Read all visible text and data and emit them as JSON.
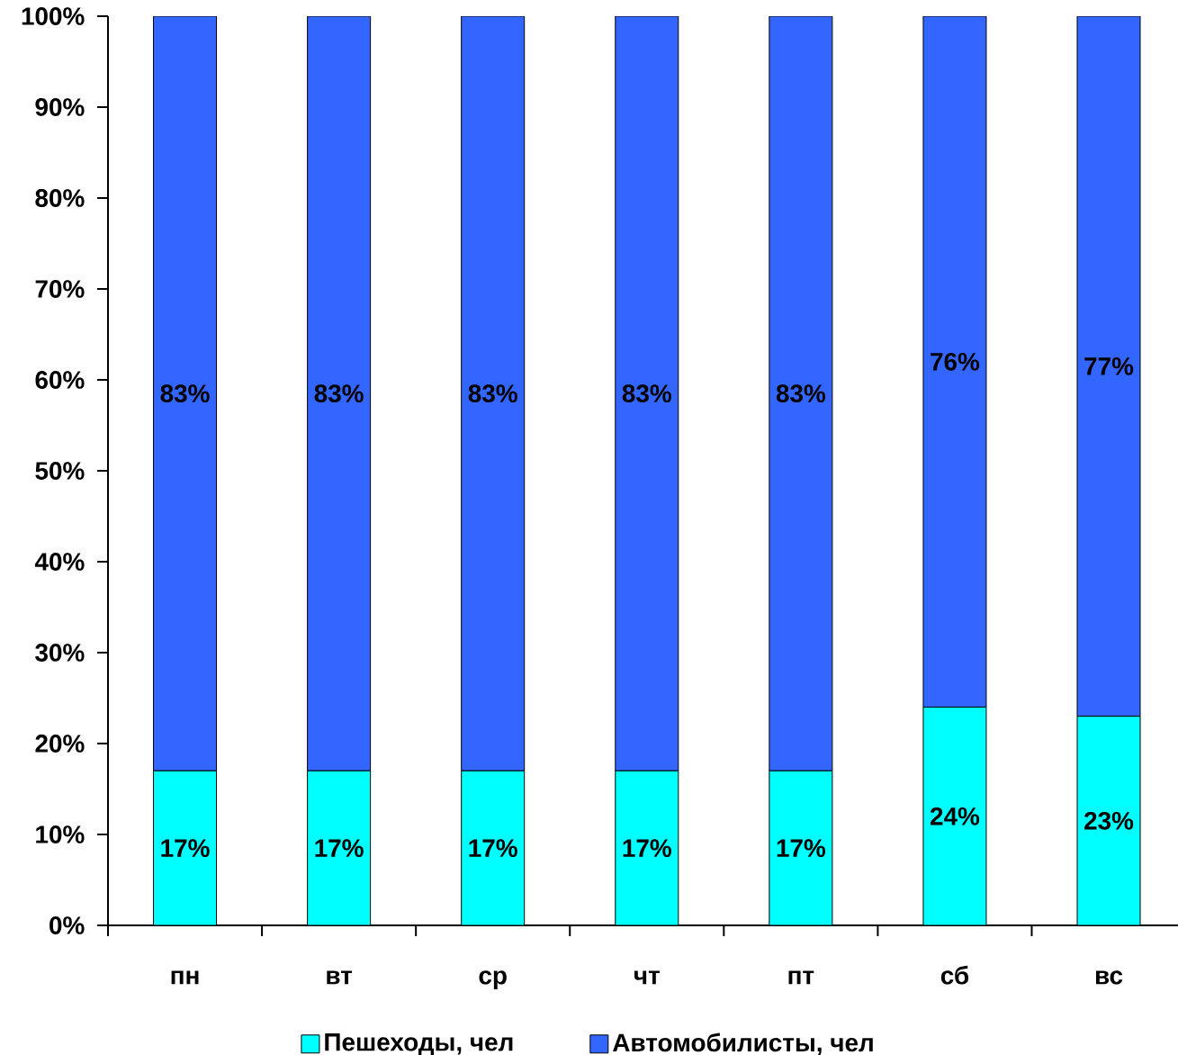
{
  "chart_data": {
    "type": "bar",
    "stacked": true,
    "categories": [
      "пн",
      "вт",
      "ср",
      "чт",
      "пт",
      "сб",
      "вс"
    ],
    "series": [
      {
        "name": "Пешеходы, чел",
        "color": "#00ffff",
        "values": [
          17,
          17,
          17,
          17,
          17,
          24,
          23
        ],
        "value_labels": [
          "17%",
          "17%",
          "17%",
          "17%",
          "17%",
          "24%",
          "23%"
        ]
      },
      {
        "name": "Автомобилисты, чел",
        "color": "#3366ff",
        "values": [
          83,
          83,
          83,
          83,
          83,
          76,
          77
        ],
        "value_labels": [
          "83%",
          "83%",
          "83%",
          "83%",
          "83%",
          "76%",
          "77%"
        ]
      }
    ],
    "ylim": [
      0,
      100
    ],
    "yticks": [
      {
        "value": 0,
        "label": "0%"
      },
      {
        "value": 10,
        "label": "10%"
      },
      {
        "value": 20,
        "label": "20%"
      },
      {
        "value": 30,
        "label": "30%"
      },
      {
        "value": 40,
        "label": "40%"
      },
      {
        "value": 50,
        "label": "50%"
      },
      {
        "value": 60,
        "label": "60%"
      },
      {
        "value": 70,
        "label": "70%"
      },
      {
        "value": 80,
        "label": "80%"
      },
      {
        "value": 90,
        "label": "90%"
      },
      {
        "value": 100,
        "label": "100%"
      }
    ],
    "grid": false,
    "legend": "bottom"
  }
}
